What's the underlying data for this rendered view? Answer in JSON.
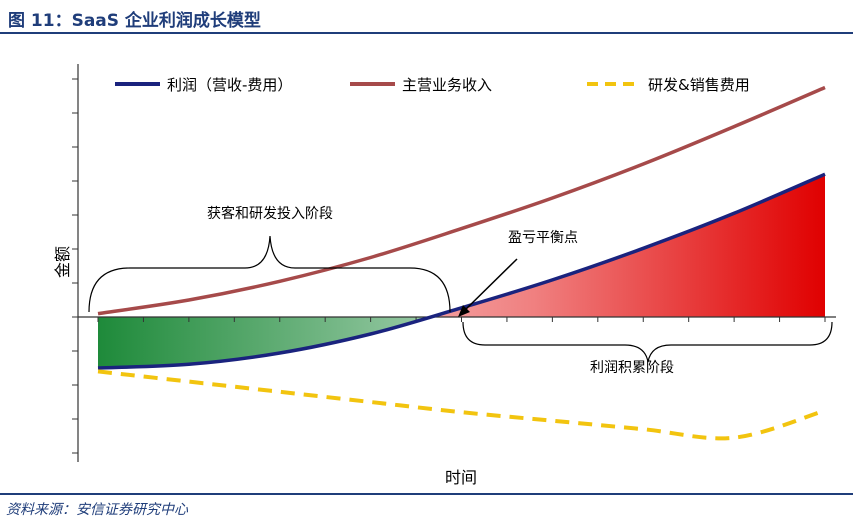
{
  "figure_title": "图 11：SaaS 企业利润成长模型",
  "source": "资料来源：安信证券研究中心",
  "chart_data": {
    "type": "line",
    "title": "图 11：SaaS 企业利润成长模型",
    "xlabel": "时间",
    "ylabel": "金额",
    "x": [
      0,
      1,
      2,
      3,
      4,
      5,
      6,
      7,
      8
    ],
    "series": [
      {
        "name": "利润（营收-费用）",
        "color": "#1a237e",
        "style": "solid",
        "values": [
          -1.5,
          -1.39,
          -1.06,
          -0.5,
          0.27,
          1.09,
          2.02,
          3.05,
          4.2
        ]
      },
      {
        "name": "主营业务收入",
        "color": "#a64a4a",
        "style": "solid",
        "values": [
          0.1,
          0.5,
          1.05,
          1.75,
          2.6,
          3.5,
          4.5,
          5.6,
          6.75
        ]
      },
      {
        "name": "研发&销售费用",
        "color": "#f2c40f",
        "style": "dashed",
        "values": [
          -1.6,
          -1.9,
          -2.2,
          -2.5,
          -2.8,
          -3.05,
          -3.3,
          -3.55,
          -2.75
        ]
      }
    ],
    "ylim": [
      -4,
      7
    ],
    "annotations": [
      {
        "text": "获客和研发投入阶段"
      },
      {
        "text": "盈亏平衡点"
      },
      {
        "text": "利润积累阶段"
      }
    ],
    "fills": [
      {
        "region": "loss",
        "color": "#1e8a3a"
      },
      {
        "region": "profit",
        "color": "#e00000"
      }
    ],
    "legend": "top",
    "grid": false
  }
}
